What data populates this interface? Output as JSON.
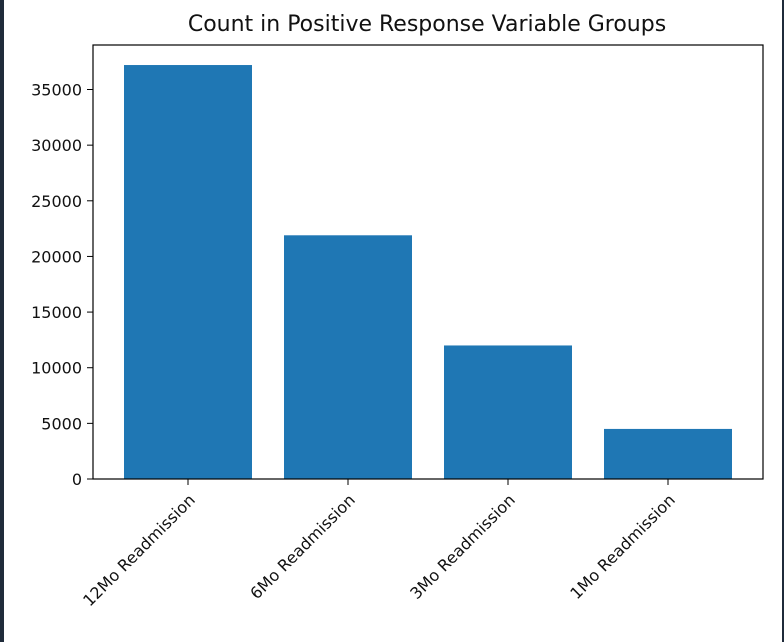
{
  "colors": {
    "bar": "#1f77b4",
    "axis": "#000000",
    "text": "#111111",
    "frame_edge": "#1f2b3a"
  },
  "chart_data": {
    "type": "bar",
    "title": "Count in Positive Response Variable Groups",
    "xlabel": "",
    "ylabel": "",
    "categories": [
      "12Mo Readmission",
      "6Mo Readmission",
      "3Mo Readmission",
      "1Mo Readmission"
    ],
    "values": [
      37200,
      21900,
      12000,
      4500
    ],
    "ylim": [
      0,
      39000
    ],
    "yticks": [
      0,
      5000,
      10000,
      15000,
      20000,
      25000,
      30000,
      35000
    ],
    "ytick_labels": [
      "0",
      "5000",
      "10000",
      "15000",
      "20000",
      "25000",
      "30000",
      "35000"
    ],
    "x_tick_rotation": -45,
    "grid": false,
    "legend": false
  }
}
